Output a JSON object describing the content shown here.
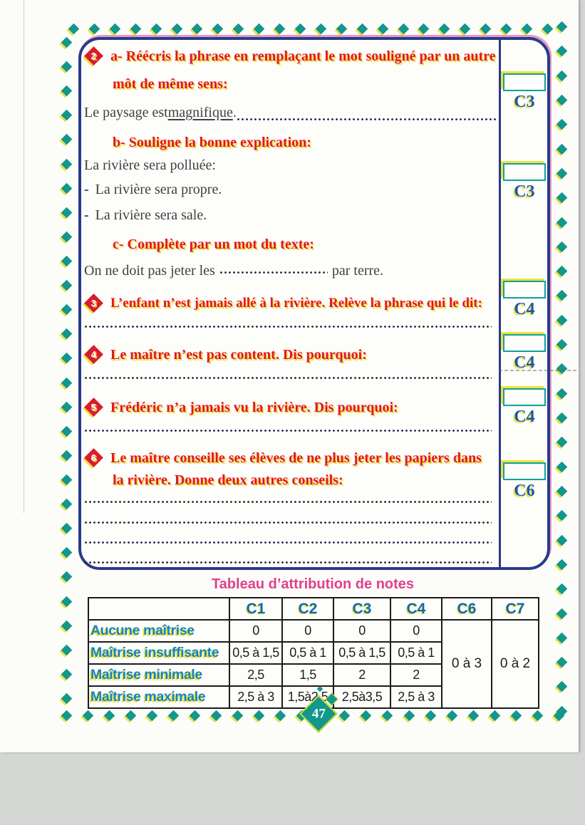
{
  "page": {
    "number": "47"
  },
  "questions": {
    "q2": {
      "badge": "2",
      "a_heading_line1": "a- Réécris la phrase en remplaçant le mot souligné par un autre",
      "a_heading_line2": "môt de même sens:",
      "sentence_prefix": "Le paysage est ",
      "sentence_underlined": "magnifique",
      "sentence_period": ". ",
      "b_heading": "b- Souligne la bonne explication:",
      "b_intro": "La rivière sera polluée:",
      "dash": "-",
      "b_option1": "La rivière sera propre.",
      "b_option2": "La rivière sera sale.",
      "c_heading": "c- Complète par un mot du texte:",
      "c_prefix": "On ne doit pas jeter les",
      "c_suffix": "par terre."
    },
    "q3": {
      "badge": "3",
      "heading": "L’enfant n’est jamais allé à la rivière. Relève la phrase qui le dit:"
    },
    "q4": {
      "badge": "4",
      "heading": "Le maître n’est pas content. Dis pourquoi:"
    },
    "q5": {
      "badge": "5",
      "heading": "Frédéric n’a jamais vu la rivière. Dis pourquoi:"
    },
    "q6": {
      "badge": "6",
      "heading_line1": "Le maître conseille ses élèves de ne plus jeter les papiers dans",
      "heading_line2": "la rivière. Donne deux autres conseils:"
    }
  },
  "competency_labels": [
    "C3",
    "C3",
    "C4",
    "C4",
    "C4",
    "C6"
  ],
  "table": {
    "title": "Tableau d’attribution de notes",
    "headers": [
      "C1",
      "C2",
      "C3",
      "C4",
      "C6",
      "C7"
    ],
    "rows": [
      {
        "label": "Aucune maîtrise",
        "values": [
          "0",
          "0",
          "0",
          "0"
        ]
      },
      {
        "label": "Maîtrise insuffisante",
        "values": [
          "0,5 à 1,5",
          "0,5 à 1",
          "0,5 à 1,5",
          "0,5 à 1"
        ]
      },
      {
        "label": "Maîtrise minimale",
        "values": [
          "2,5",
          "1,5",
          "2",
          "2"
        ]
      },
      {
        "label": "Maîtrise maximale",
        "values": [
          "2,5 à 3",
          "1,5à2,5",
          "2,5à3,5",
          "2,5 à 3"
        ]
      }
    ],
    "merged_c6": "0 à 3",
    "merged_c7": "0 à 2"
  },
  "colors": {
    "diamond_teal": "#11978b",
    "accent_yellow": "#eae33c",
    "box_navy": "#2a3a8a",
    "heading_red": "#e2142c",
    "title_magenta": "#e23f8e",
    "header_blue": "#0c67c2",
    "row_label_blue": "#1482c8"
  }
}
